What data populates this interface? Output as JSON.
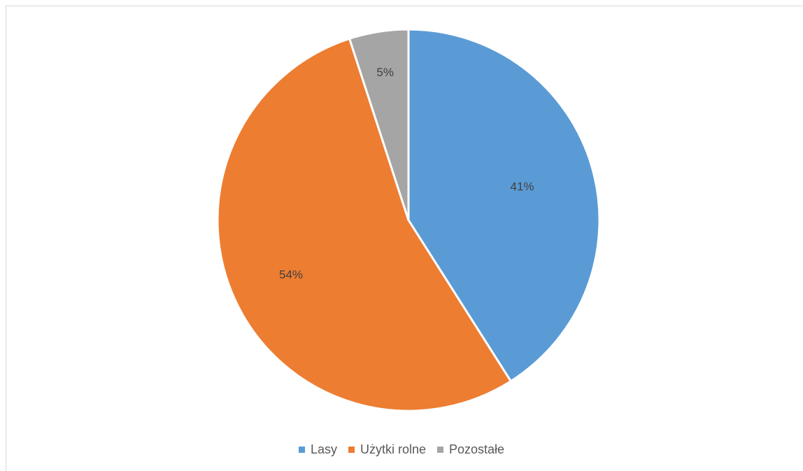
{
  "chart_data": {
    "type": "pie",
    "categories": [
      "Lasy",
      "Użytki rolne",
      "Pozostałe"
    ],
    "values": [
      41,
      54,
      5
    ],
    "data_labels": [
      "41%",
      "54%",
      "5%"
    ],
    "colors": [
      "#5B9BD5",
      "#ED7D31",
      "#A5A5A5"
    ],
    "title": "",
    "legend_position": "bottom"
  }
}
